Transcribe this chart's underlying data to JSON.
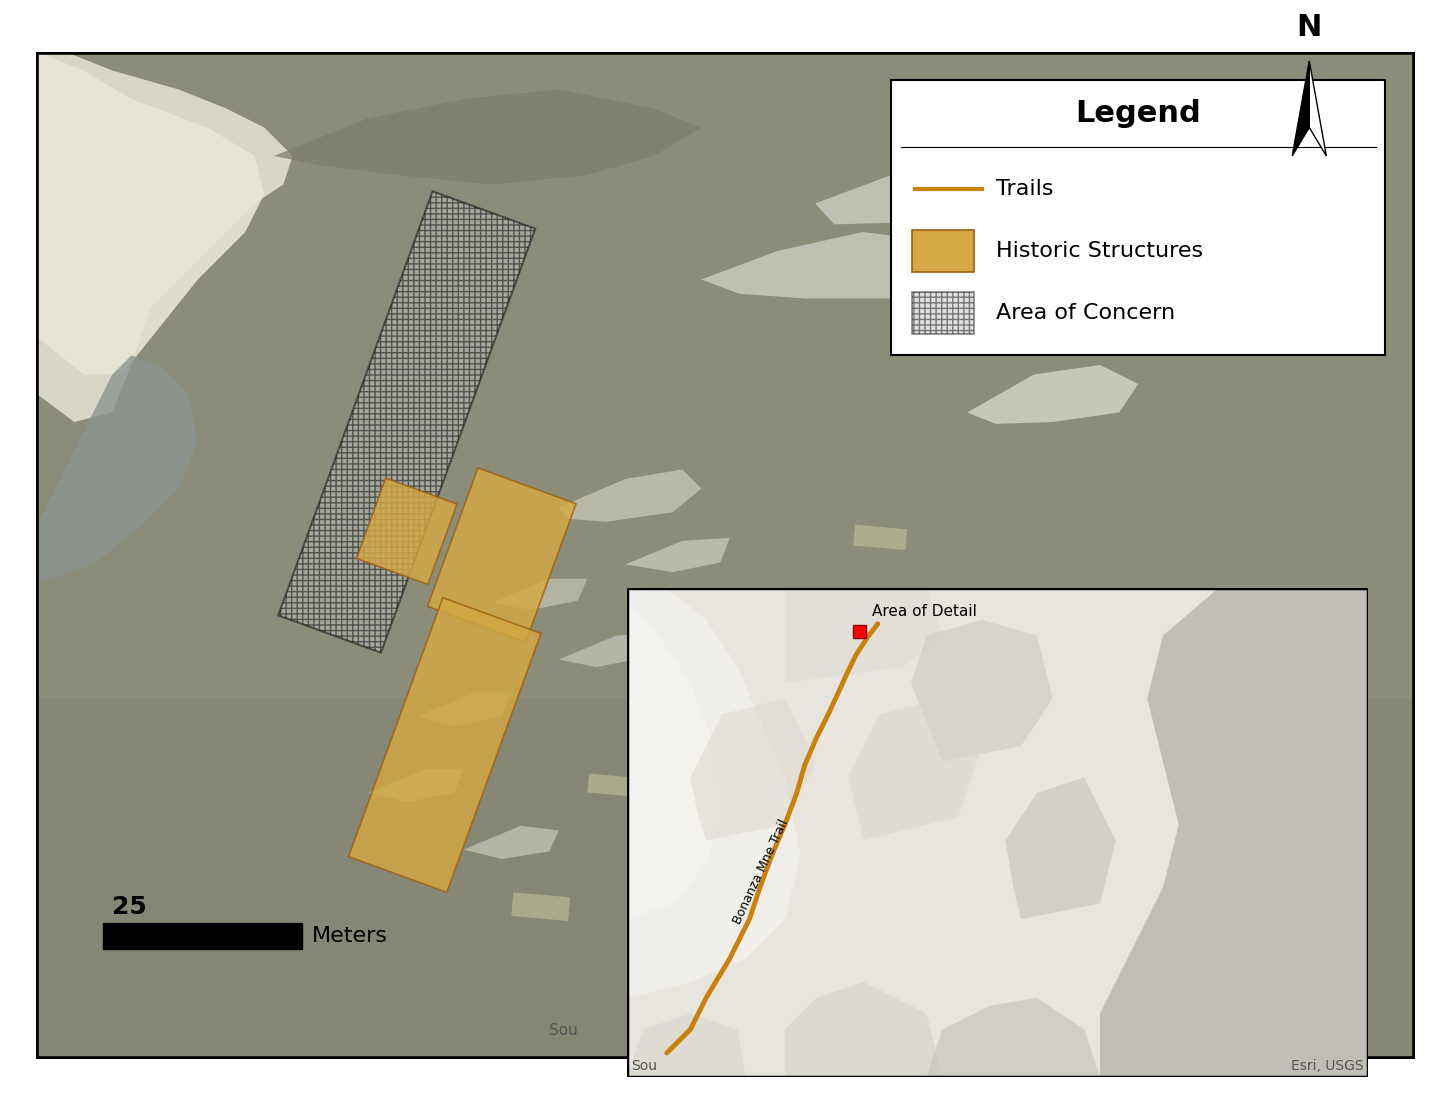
{
  "figure_width": 14.51,
  "figure_height": 11.1,
  "bg_color": "#ffffff",
  "border_color": "#000000",
  "trail_color": "#C8820A",
  "structure_color": "#D4A843",
  "structure_alpha": 0.82,
  "structure_edge_color": "#A06010",
  "hatch_color": "#111111",
  "legend_title": "Legend",
  "legend_items": [
    "Trails",
    "Historic Structures",
    "Area of Concern"
  ],
  "scalebar_label": "25",
  "scalebar_units": "Meters",
  "area_of_detail_label": "Area of Detail",
  "bonanza_trail_label": "Bonanza Mne Trail",
  "source_text": "Sou",
  "esri_text": "Esri, USGS",
  "main_bg_color": "#8a8c78",
  "inset_bg_color": "#d8d5cc"
}
